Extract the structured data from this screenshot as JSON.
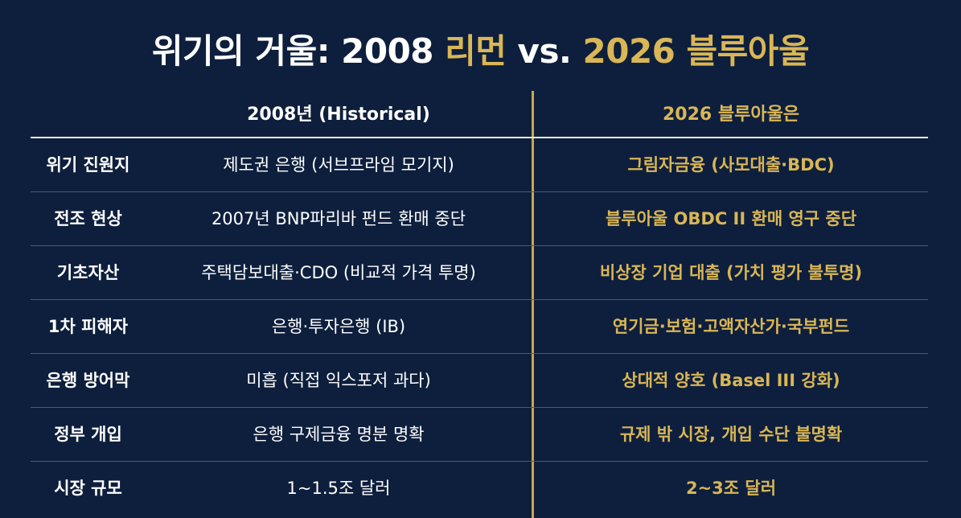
{
  "title": {
    "part1": "위기의 거울: 2008 ",
    "part2": "리먼",
    "part3": " vs. ",
    "part4": "2026 블루아울"
  },
  "columns": {
    "col2": "2008년 (Historical)",
    "col3": "2026 블루아울은"
  },
  "rows": [
    {
      "label": "위기 진원지",
      "h2008": "제도권 은행 (서브프라임 모기지)",
      "h2026": "그림자금융 (사모대출·BDC)"
    },
    {
      "label": "전조 현상",
      "h2008": "2007년 BNP파리바 펀드 환매 중단",
      "h2026": "블루아울 OBDC II 환매 영구 중단"
    },
    {
      "label": "기초자산",
      "h2008": "주택담보대출·CDO (비교적 가격 투명)",
      "h2026": "비상장 기업 대출 (가치 평가 불투명)"
    },
    {
      "label": "1차 피해자",
      "h2008": "은행·투자은행 (IB)",
      "h2026": "연기금·보험·고액자산가·국부펀드"
    },
    {
      "label": "은행 방어막",
      "h2008": "미흡 (직접 익스포저 과다)",
      "h2026": "상대적 양호 (Basel III 강화)"
    },
    {
      "label": "정부 개입",
      "h2008": "은행 구제금융 명분 명확",
      "h2026": "규제 밖 시장, 개입 수단 불명확"
    },
    {
      "label": "시장 규모",
      "h2008": "1~1.5조 달러",
      "h2026": "2~3조 달러"
    }
  ],
  "colors": {
    "background": "#0e1f3d",
    "accent": "#d9b656",
    "text": "#ffffff"
  }
}
